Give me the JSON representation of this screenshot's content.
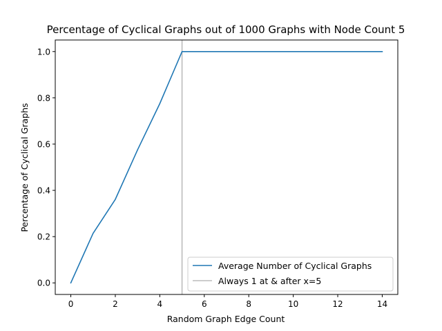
{
  "chart_data": {
    "type": "line",
    "title": "Percentage of Cyclical Graphs out of 1000 Graphs with Node Count 5",
    "xlabel": "Random Graph Edge Count",
    "ylabel": "Percentage of Cyclical Graphs",
    "xlim": [
      -0.7,
      14.7
    ],
    "ylim": [
      -0.05,
      1.05
    ],
    "xticks": [
      0,
      2,
      4,
      6,
      8,
      10,
      12,
      14
    ],
    "xtick_labels": [
      "0",
      "2",
      "4",
      "6",
      "8",
      "10",
      "12",
      "14"
    ],
    "yticks": [
      0.0,
      0.2,
      0.4,
      0.6,
      0.8,
      1.0
    ],
    "ytick_labels": [
      "0.0",
      "0.2",
      "0.4",
      "0.6",
      "0.8",
      "1.0"
    ],
    "grid": false,
    "legend_position": "lower-right",
    "series": [
      {
        "name": "Average Number of Cyclical Graphs",
        "color": "#1f77b4",
        "x": [
          0,
          1,
          2,
          3,
          4,
          5,
          6,
          7,
          8,
          9,
          10,
          11,
          12,
          13,
          14
        ],
        "values": [
          0.0,
          0.214,
          0.361,
          0.575,
          0.775,
          1.0,
          1.0,
          1.0,
          1.0,
          1.0,
          1.0,
          1.0,
          1.0,
          1.0,
          1.0
        ]
      }
    ],
    "reference_line": {
      "name": "Always 1 at & after x=5",
      "x": 5,
      "color": "#bbbbbb"
    }
  }
}
